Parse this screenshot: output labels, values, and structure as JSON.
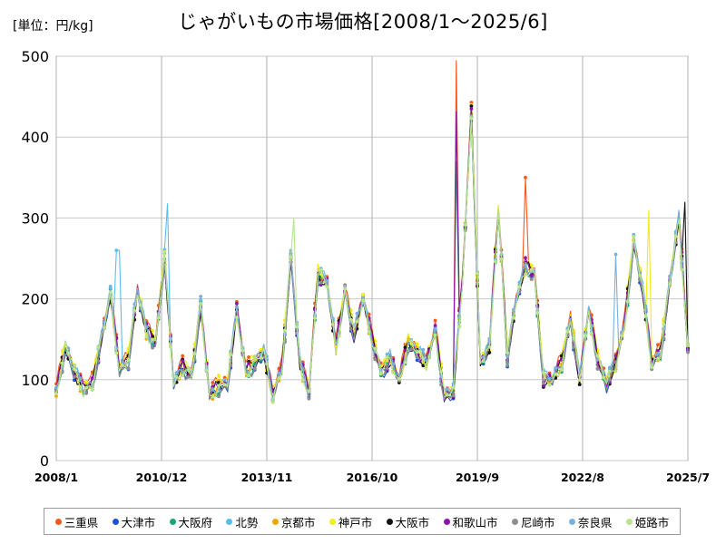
{
  "header": {
    "unit": "[単位：円/kg]",
    "title": "じゃがいもの市場価格[2008/1～2025/6]"
  },
  "chart_data": {
    "type": "line",
    "title": "じゃがいもの市場価格[2008/1～2025/6]",
    "ylabel": "[単位：円/kg]",
    "xlabel": "",
    "ylim": [
      0,
      500
    ],
    "y_ticks": [
      "0",
      "100",
      "200",
      "300",
      "400",
      "500"
    ],
    "x_tick_labels": [
      "2008/1",
      "2010/12",
      "2013/11",
      "2016/10",
      "2019/9",
      "2022/8",
      "2025/7"
    ],
    "x_tick_values": [
      2008.0,
      2010.917,
      2013.833,
      2016.75,
      2019.667,
      2022.583,
      2025.5
    ],
    "xlim": [
      2008.0,
      2025.5
    ],
    "grid": true,
    "legend_position": "bottom",
    "baseline": {
      "x": [
        2008.0,
        2008.25,
        2008.5,
        2008.75,
        2009.0,
        2009.25,
        2009.5,
        2009.75,
        2010.0,
        2010.25,
        2010.5,
        2010.75,
        2011.0,
        2011.25,
        2011.5,
        2011.75,
        2012.0,
        2012.25,
        2012.5,
        2012.75,
        2013.0,
        2013.25,
        2013.5,
        2013.75,
        2014.0,
        2014.25,
        2014.5,
        2014.75,
        2015.0,
        2015.25,
        2015.5,
        2015.75,
        2016.0,
        2016.25,
        2016.5,
        2016.75,
        2017.0,
        2017.25,
        2017.5,
        2017.75,
        2018.0,
        2018.25,
        2018.5,
        2018.75,
        2019.0,
        2019.25,
        2019.5,
        2019.75,
        2020.0,
        2020.25,
        2020.5,
        2020.75,
        2021.0,
        2021.25,
        2021.5,
        2021.75,
        2022.0,
        2022.25,
        2022.5,
        2022.75,
        2023.0,
        2023.25,
        2023.5,
        2023.75,
        2024.0,
        2024.25,
        2024.5,
        2024.75,
        2025.0,
        2025.25,
        2025.5
      ],
      "y": [
        85,
        140,
        110,
        88,
        95,
        150,
        205,
        112,
        125,
        210,
        160,
        145,
        250,
        95,
        115,
        105,
        190,
        80,
        92,
        95,
        185,
        110,
        120,
        135,
        80,
        115,
        250,
        120,
        85,
        230,
        220,
        140,
        210,
        155,
        200,
        150,
        110,
        125,
        100,
        145,
        135,
        120,
        160,
        80,
        85,
        220,
        430,
        120,
        140,
        310,
        130,
        200,
        240,
        230,
        100,
        100,
        120,
        175,
        100,
        185,
        125,
        95,
        120,
        170,
        270,
        210,
        120,
        135,
        220,
        300,
        140
      ]
    },
    "series": [
      {
        "name": "三重県",
        "color": "#f4581c",
        "offset": 6,
        "peaks": {
          "2019.1": 495,
          "2021.0": 350
        }
      },
      {
        "name": "大津市",
        "color": "#1f4fd6",
        "offset": -4,
        "peaks": {}
      },
      {
        "name": "大阪府",
        "color": "#1aa674",
        "offset": -2,
        "peaks": {
          "2019.1": 370
        }
      },
      {
        "name": "北勢",
        "color": "#59bdf0",
        "offset": 2,
        "peaks": {
          "2011.1": 318,
          "2009.7": 260
        }
      },
      {
        "name": "京都市",
        "color": "#f0a500",
        "offset": 0,
        "peaks": {}
      },
      {
        "name": "神戸市",
        "color": "#f2ec17",
        "offset": 4,
        "peaks": {
          "2024.4": 310
        }
      },
      {
        "name": "大阪市",
        "color": "#111111",
        "offset": 0,
        "peaks": {
          "2025.4": 320
        }
      },
      {
        "name": "和歌山市",
        "color": "#8d14a8",
        "offset": 1,
        "peaks": {
          "2019.1": 432
        }
      },
      {
        "name": "尼崎市",
        "color": "#8e8e8e",
        "offset": -3,
        "peaks": {}
      },
      {
        "name": "奈良県",
        "color": "#7ab0dc",
        "offset": 3,
        "peaks": {
          "2023.5": 255
        }
      },
      {
        "name": "姫路市",
        "color": "#b8e58b",
        "offset": -1,
        "peaks": {
          "2014.6": 300
        }
      }
    ]
  }
}
